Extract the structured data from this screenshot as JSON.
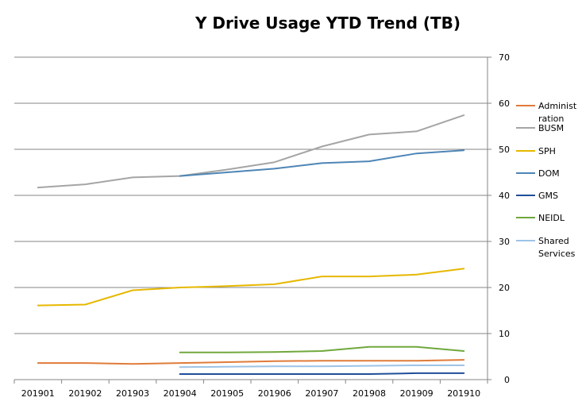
{
  "chart_data": {
    "type": "line",
    "title": "Y Drive Usage YTD Trend (TB)",
    "xlabel": "",
    "ylabel": "",
    "categories": [
      "201901",
      "201902",
      "201903",
      "201904",
      "201905",
      "201906",
      "201907",
      "201908",
      "201909",
      "201910"
    ],
    "ylim": [
      0,
      70
    ],
    "yticks": [
      "0",
      "10",
      "20",
      "30",
      "40",
      "50",
      "60",
      "70"
    ],
    "y_axis_side": "right",
    "grid": true,
    "legend_position": "right",
    "series": [
      {
        "name": "Administration",
        "legend_lines": [
          "Administ",
          "ration"
        ],
        "color": "#E07B39",
        "values": [
          3.6,
          3.6,
          3.4,
          3.6,
          3.8,
          4.0,
          4.1,
          4.1,
          4.1,
          4.3
        ]
      },
      {
        "name": "BUSM",
        "legend_lines": [
          "BUSM"
        ],
        "color": "#A5A5A5",
        "values": [
          41.7,
          42.4,
          43.9,
          44.2,
          45.6,
          47.2,
          50.6,
          53.2,
          53.9,
          57.4
        ]
      },
      {
        "name": "SPH",
        "legend_lines": [
          "SPH"
        ],
        "color": "#E6B800",
        "values": [
          16.1,
          16.3,
          19.4,
          20.0,
          20.3,
          20.7,
          22.4,
          22.4,
          22.8,
          24.1
        ]
      },
      {
        "name": "DOM",
        "legend_lines": [
          "DOM"
        ],
        "color": "#4E85B5",
        "values": [
          null,
          null,
          null,
          44.2,
          45.0,
          45.8,
          47.0,
          47.4,
          49.1,
          49.8
        ]
      },
      {
        "name": "GMS",
        "legend_lines": [
          "GMS"
        ],
        "color": "#1F4E99",
        "values": [
          null,
          null,
          null,
          1.2,
          1.2,
          1.2,
          1.2,
          1.2,
          1.4,
          1.4
        ]
      },
      {
        "name": "NEIDL",
        "legend_lines": [
          "NEIDL"
        ],
        "color": "#70A83C",
        "values": [
          null,
          null,
          null,
          5.9,
          5.9,
          6.0,
          6.2,
          7.1,
          7.1,
          6.2
        ]
      },
      {
        "name": "Shared Services",
        "legend_lines": [
          "Shared",
          "Services"
        ],
        "color": "#9DC3E6",
        "values": [
          null,
          null,
          null,
          2.7,
          2.8,
          2.9,
          2.9,
          3.0,
          3.1,
          3.1
        ]
      }
    ]
  }
}
